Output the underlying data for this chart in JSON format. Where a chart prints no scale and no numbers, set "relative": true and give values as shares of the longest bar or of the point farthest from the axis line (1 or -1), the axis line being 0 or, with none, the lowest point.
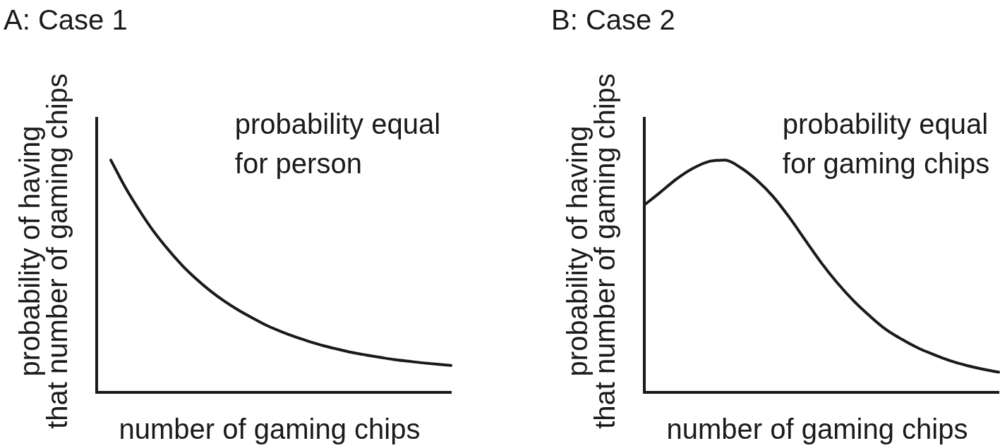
{
  "chart_data": [
    {
      "type": "line",
      "title": "A: Case 1",
      "xlabel": "number of gaming chips",
      "ylabel": "probability of having\nthat number of gaming chips",
      "annotations": [
        "probability equal\nfor person"
      ],
      "relative": true,
      "tick_labels": false,
      "marker": "none",
      "line_style": "solid",
      "categories": [
        null,
        null,
        null,
        null,
        null,
        null,
        null,
        null,
        null,
        null,
        null,
        null,
        null,
        null,
        null,
        null,
        null,
        null,
        null,
        null,
        null,
        null,
        null,
        null,
        null,
        null
      ],
      "series": [
        {
          "color": "#1a1a1a",
          "values": [
            null,
            1,
            0.885,
            0.785,
            0.695,
            0.618,
            0.549,
            0.49,
            0.438,
            0.393,
            0.354,
            0.32,
            0.288,
            0.262,
            0.239,
            0.219,
            0.201,
            0.186,
            0.172,
            0.161,
            0.151,
            0.141,
            0.134,
            0.127,
            0.121,
            0.116
          ]
        }
      ]
    },
    {
      "type": "line",
      "title": "B: Case 2",
      "xlabel": "number of gaming chips",
      "ylabel": "probability of having\nthat number of gaming chips",
      "annotations": [
        "probability equal\nfor gaming chips"
      ],
      "relative": true,
      "tick_labels": false,
      "marker": "none",
      "line_style": "solid",
      "categories": [
        null,
        null,
        null,
        null,
        null,
        null,
        null,
        null,
        null,
        null,
        null,
        null,
        null,
        null,
        null,
        null,
        null,
        null,
        null,
        null,
        null,
        null,
        null
      ],
      "series": [
        {
          "color": "#1a1a1a",
          "values": [
            0.807,
            0.862,
            0.919,
            0.964,
            0.994,
            1,
            0.967,
            0.913,
            0.843,
            0.754,
            0.655,
            0.557,
            0.47,
            0.394,
            0.329,
            0.271,
            0.228,
            0.191,
            0.162,
            0.136,
            0.116,
            0.1,
            0.087
          ]
        }
      ]
    }
  ]
}
